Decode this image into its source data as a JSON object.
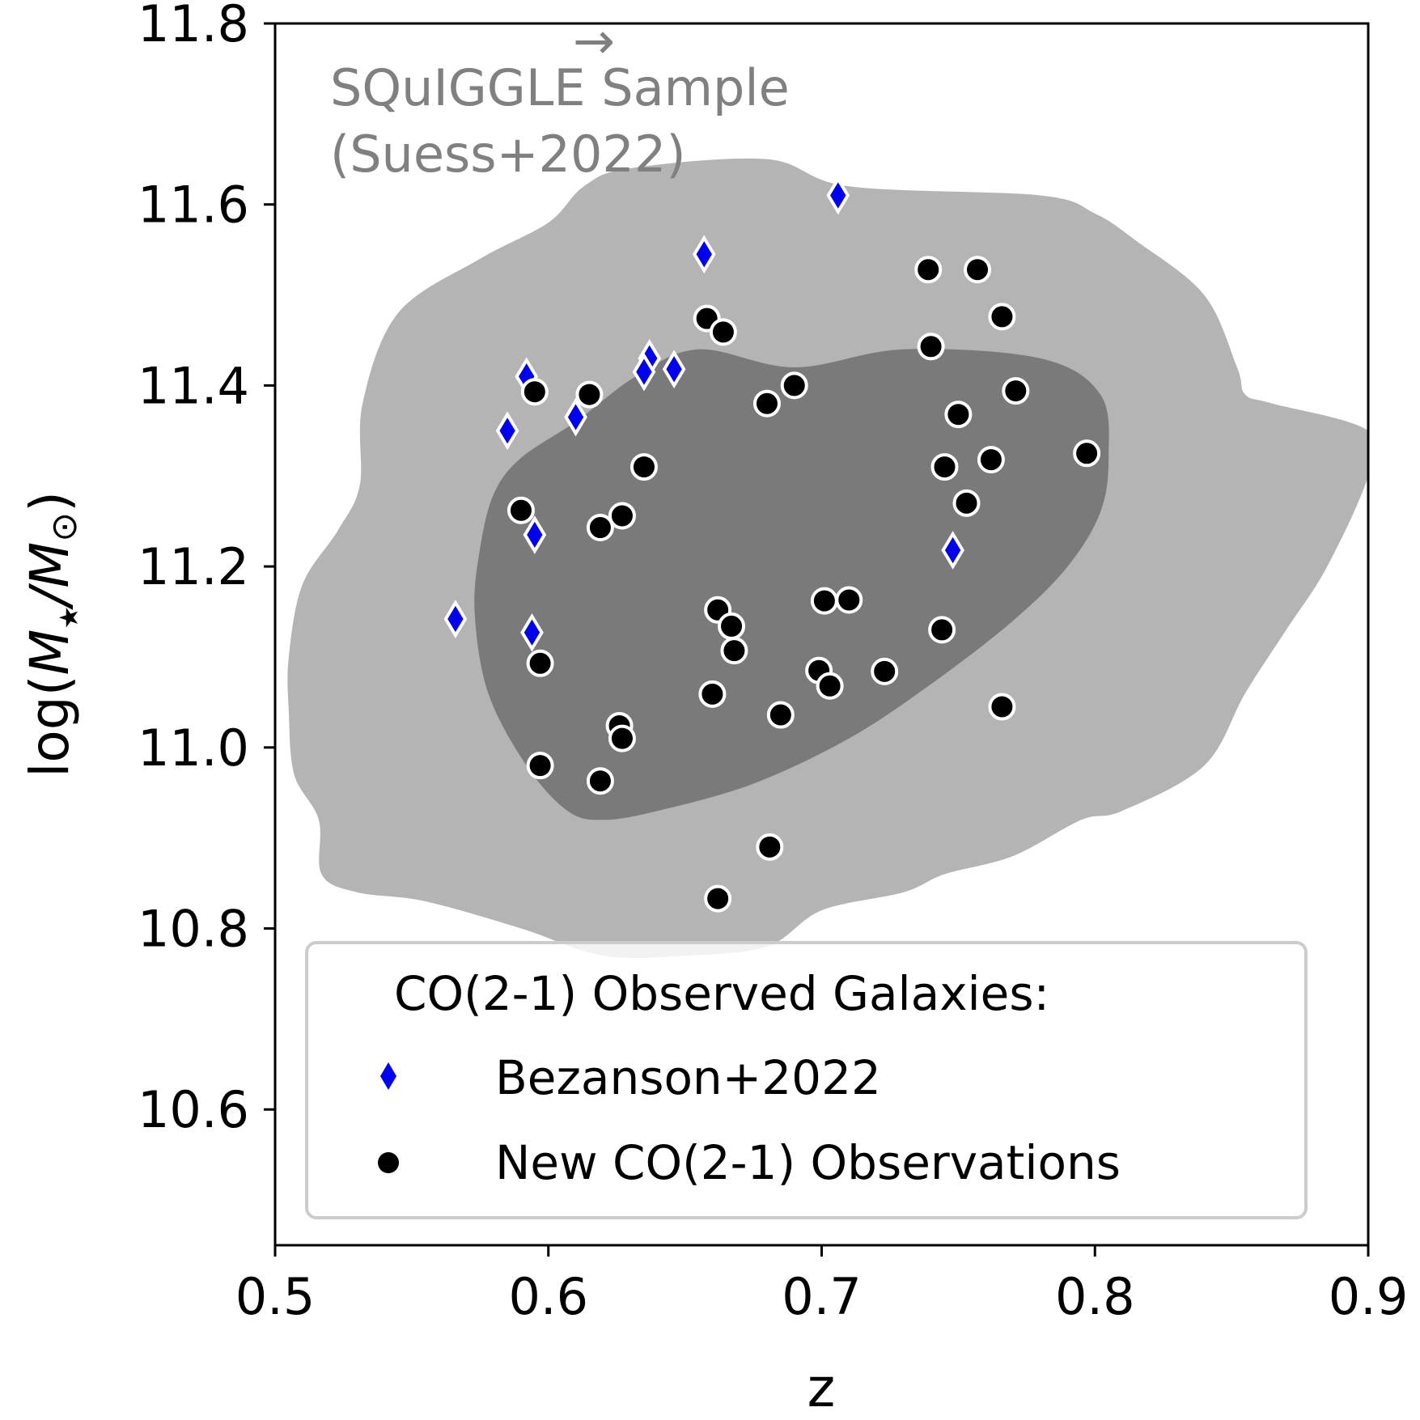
{
  "chart_data": {
    "type": "scatter",
    "xlabel": "z",
    "ylabel_parts": {
      "prefix": "log(",
      "m1": "M",
      "sub1": "★",
      "slash": "/",
      "m2": "M",
      "sub2": "⊙",
      "suffix": ")"
    },
    "xlim": [
      0.5,
      0.9
    ],
    "ylim": [
      10.45,
      11.8
    ],
    "x_ticks": [
      {
        "value": 0.5,
        "label": "0.5"
      },
      {
        "value": 0.6,
        "label": "0.6"
      },
      {
        "value": 0.7,
        "label": "0.7"
      },
      {
        "value": 0.8,
        "label": "0.8"
      },
      {
        "value": 0.9,
        "label": "0.9"
      }
    ],
    "y_ticks": [
      {
        "value": 10.6,
        "label": "10.6"
      },
      {
        "value": 10.8,
        "label": "10.8"
      },
      {
        "value": 11.0,
        "label": "11.0"
      },
      {
        "value": 11.2,
        "label": "11.2"
      },
      {
        "value": 11.4,
        "label": "11.4"
      },
      {
        "value": 11.6,
        "label": "11.6"
      },
      {
        "value": 11.8,
        "label": "11.8"
      }
    ],
    "annotation": {
      "line1": "SQuIGGLE Sample",
      "arrow": "→",
      "line2": "(Suess+2022)"
    },
    "colors": {
      "outer_contour": "#b4b4b4",
      "inner_contour": "#7a7a7a",
      "bezanson": "#0000ee",
      "new_obs": "#000000",
      "marker_edge": "#ffffff",
      "annotation": "#808080",
      "legend_border": "#cccccc"
    },
    "contours": [
      {
        "name": "outer",
        "points": [
          [
            0.555,
            10.83
          ],
          [
            0.53,
            10.84
          ],
          [
            0.517,
            10.86
          ],
          [
            0.516,
            10.92
          ],
          [
            0.507,
            10.97
          ],
          [
            0.505,
            11.04
          ],
          [
            0.505,
            11.1
          ],
          [
            0.51,
            11.18
          ],
          [
            0.523,
            11.24
          ],
          [
            0.531,
            11.29
          ],
          [
            0.532,
            11.38
          ],
          [
            0.545,
            11.48
          ],
          [
            0.575,
            11.54
          ],
          [
            0.6,
            11.58
          ],
          [
            0.613,
            11.62
          ],
          [
            0.63,
            11.64
          ],
          [
            0.68,
            11.65
          ],
          [
            0.71,
            11.62
          ],
          [
            0.78,
            11.61
          ],
          [
            0.8,
            11.59
          ],
          [
            0.815,
            11.56
          ],
          [
            0.84,
            11.5
          ],
          [
            0.852,
            11.42
          ],
          [
            0.855,
            11.39
          ],
          [
            0.865,
            11.38
          ],
          [
            0.9,
            11.35
          ],
          [
            0.9,
            11.3
          ],
          [
            0.885,
            11.2
          ],
          [
            0.87,
            11.13
          ],
          [
            0.855,
            11.06
          ],
          [
            0.84,
            10.98
          ],
          [
            0.81,
            10.93
          ],
          [
            0.795,
            10.92
          ],
          [
            0.77,
            10.88
          ],
          [
            0.745,
            10.86
          ],
          [
            0.73,
            10.84
          ],
          [
            0.7,
            10.82
          ],
          [
            0.68,
            10.78
          ],
          [
            0.65,
            10.77
          ],
          [
            0.62,
            10.77
          ],
          [
            0.59,
            10.8
          ]
        ]
      },
      {
        "name": "inner",
        "points": [
          [
            0.607,
            10.93
          ],
          [
            0.592,
            10.98
          ],
          [
            0.578,
            11.06
          ],
          [
            0.573,
            11.15
          ],
          [
            0.575,
            11.22
          ],
          [
            0.58,
            11.28
          ],
          [
            0.59,
            11.32
          ],
          [
            0.61,
            11.36
          ],
          [
            0.632,
            11.41
          ],
          [
            0.655,
            11.44
          ],
          [
            0.69,
            11.42
          ],
          [
            0.73,
            11.44
          ],
          [
            0.78,
            11.43
          ],
          [
            0.802,
            11.39
          ],
          [
            0.805,
            11.32
          ],
          [
            0.802,
            11.26
          ],
          [
            0.79,
            11.2
          ],
          [
            0.77,
            11.14
          ],
          [
            0.74,
            11.07
          ],
          [
            0.71,
            11.01
          ],
          [
            0.675,
            10.96
          ],
          [
            0.64,
            10.93
          ],
          [
            0.62,
            10.92
          ]
        ]
      }
    ],
    "series": [
      {
        "name": "Bezanson+2022",
        "marker": "diamond",
        "color": "#0000ee",
        "points": [
          [
            0.706,
            11.61
          ],
          [
            0.657,
            11.545
          ],
          [
            0.592,
            11.41
          ],
          [
            0.637,
            11.43
          ],
          [
            0.635,
            11.415
          ],
          [
            0.646,
            11.418
          ],
          [
            0.585,
            11.35
          ],
          [
            0.61,
            11.365
          ],
          [
            0.595,
            11.235
          ],
          [
            0.566,
            11.142
          ],
          [
            0.594,
            11.127
          ],
          [
            0.748,
            11.218
          ]
        ]
      },
      {
        "name": "New CO(2-1) Observations",
        "marker": "circle",
        "color": "#000000",
        "points": [
          [
            0.739,
            11.528
          ],
          [
            0.757,
            11.528
          ],
          [
            0.766,
            11.476
          ],
          [
            0.658,
            11.474
          ],
          [
            0.664,
            11.459
          ],
          [
            0.74,
            11.443
          ],
          [
            0.595,
            11.393
          ],
          [
            0.615,
            11.39
          ],
          [
            0.69,
            11.4
          ],
          [
            0.68,
            11.38
          ],
          [
            0.771,
            11.394
          ],
          [
            0.75,
            11.368
          ],
          [
            0.797,
            11.325
          ],
          [
            0.745,
            11.31
          ],
          [
            0.762,
            11.318
          ],
          [
            0.635,
            11.31
          ],
          [
            0.753,
            11.27
          ],
          [
            0.59,
            11.262
          ],
          [
            0.619,
            11.243
          ],
          [
            0.627,
            11.256
          ],
          [
            0.662,
            11.152
          ],
          [
            0.667,
            11.134
          ],
          [
            0.701,
            11.162
          ],
          [
            0.71,
            11.163
          ],
          [
            0.668,
            11.107
          ],
          [
            0.744,
            11.13
          ],
          [
            0.597,
            11.093
          ],
          [
            0.699,
            11.085
          ],
          [
            0.703,
            11.068
          ],
          [
            0.723,
            11.084
          ],
          [
            0.66,
            11.059
          ],
          [
            0.685,
            11.036
          ],
          [
            0.766,
            11.045
          ],
          [
            0.626,
            11.024
          ],
          [
            0.627,
            11.01
          ],
          [
            0.597,
            10.98
          ],
          [
            0.619,
            10.963
          ],
          [
            0.681,
            10.89
          ],
          [
            0.662,
            10.833
          ]
        ]
      }
    ],
    "legend": {
      "title": "CO(2-1) Observed Galaxies:",
      "entries": [
        "Bezanson+2022",
        "New CO(2-1) Observations"
      ],
      "placement": "bottom-center"
    }
  }
}
